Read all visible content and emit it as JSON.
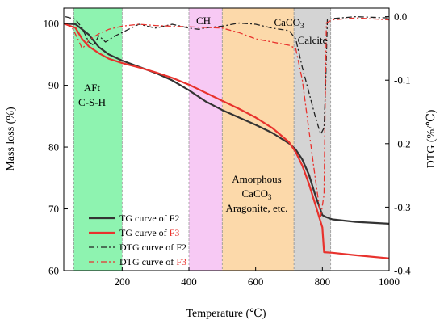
{
  "chart_data": {
    "type": "line",
    "xlabel": "Temperature (℃)",
    "ylabel_left": "Mass loss (%)",
    "ylabel_right": "DTG (%/℃)",
    "xlim": [
      25,
      1000
    ],
    "ylim_left": [
      60,
      102.5
    ],
    "ylim_right": [
      -0.4,
      0.0135
    ],
    "x_ticks": [
      200,
      400,
      600,
      800,
      1000
    ],
    "y_ticks_left": [
      60,
      70,
      80,
      90,
      100
    ],
    "y_ticks_right": [
      0.0,
      -0.1,
      -0.2,
      -0.3,
      -0.4
    ],
    "y_tick_labels_right": [
      "0.0",
      "-0.1",
      "-0.2",
      "-0.3",
      "-0.4"
    ],
    "grid": false,
    "legend_position": "bottom-left",
    "regions": [
      {
        "x0": 55,
        "x1": 200,
        "color": "#8ef3b0",
        "labels": [
          "AFt",
          "C-S-H"
        ]
      },
      {
        "x0": 400,
        "x1": 500,
        "color": "#f7c9f4",
        "labels": [
          "CH"
        ]
      },
      {
        "x0": 500,
        "x1": 715,
        "color": "#fcd9aa",
        "labels": [
          "Amorphous",
          "CaCO",
          "Aragonite, etc."
        ]
      },
      {
        "x0": 715,
        "x1": 825,
        "color": "#d4d4d4",
        "labels": [
          "CaCO",
          "Calcite"
        ]
      }
    ],
    "annotations": {
      "aft": "AFt",
      "csh": "C-S-H",
      "ch": "CH",
      "amorphous": "Amorphous",
      "caco3_mid_base": "CaCO",
      "caco3_mid_sub": "3",
      "aragonite": "Aragonite, etc.",
      "caco3_top_base": "CaCO",
      "caco3_top_sub": "3",
      "calcite": "Calcite"
    },
    "series": [
      {
        "name": "TG curve of F2",
        "legend_base": "TG curve of ",
        "legend_tag": "F2",
        "tag_color": "#000000",
        "axis": "left",
        "color": "#333333",
        "dash": "solid",
        "width": 2.2,
        "x": [
          25,
          60,
          100,
          130,
          160,
          200,
          250,
          300,
          350,
          400,
          450,
          500,
          550,
          600,
          650,
          700,
          720,
          740,
          760,
          780,
          800,
          810,
          830,
          900,
          1000
        ],
        "y": [
          100.0,
          99.9,
          98.2,
          96.2,
          95.0,
          94.0,
          93.0,
          92.0,
          90.8,
          89.2,
          87.4,
          86.0,
          84.8,
          83.6,
          82.3,
          80.6,
          79.6,
          78.0,
          75.5,
          72.0,
          69.0,
          68.7,
          68.3,
          67.9,
          67.6
        ]
      },
      {
        "name": "TG curve of F3",
        "legend_base": "TG curve of ",
        "legend_tag": "F3",
        "tag_color": "#e8322d",
        "axis": "left",
        "color": "#e8322d",
        "dash": "solid",
        "width": 2.2,
        "x": [
          25,
          60,
          80,
          100,
          130,
          160,
          200,
          250,
          300,
          350,
          400,
          450,
          500,
          550,
          600,
          650,
          700,
          720,
          740,
          760,
          780,
          800,
          805,
          830,
          900,
          1000
        ],
        "y": [
          100.0,
          99.3,
          97.5,
          96.3,
          95.2,
          94.3,
          93.6,
          92.9,
          92.1,
          91.2,
          90.1,
          88.8,
          87.5,
          86.2,
          84.8,
          83.1,
          80.8,
          79.2,
          77.0,
          74.0,
          70.5,
          67.0,
          63.0,
          62.9,
          62.5,
          62.0
        ]
      },
      {
        "name": "DTG curve of F2",
        "legend_base": "DTG curve of ",
        "legend_tag": "F2",
        "tag_color": "#000000",
        "axis": "right",
        "color": "#222222",
        "dash": "7,3,2,3",
        "width": 1.3,
        "x": [
          30,
          60,
          80,
          100,
          115,
          130,
          150,
          180,
          200,
          250,
          300,
          350,
          400,
          430,
          460,
          500,
          550,
          600,
          650,
          700,
          720,
          740,
          760,
          780,
          795,
          805,
          810,
          815,
          830,
          900,
          1000
        ],
        "y": [
          0.0,
          -0.004,
          -0.018,
          -0.04,
          -0.045,
          -0.03,
          -0.04,
          -0.03,
          -0.025,
          -0.012,
          -0.018,
          -0.012,
          -0.018,
          -0.02,
          -0.017,
          -0.015,
          -0.01,
          -0.012,
          -0.018,
          -0.022,
          -0.035,
          -0.08,
          -0.12,
          -0.16,
          -0.185,
          -0.175,
          -0.1,
          -0.005,
          -0.003,
          0.0,
          -0.002
        ]
      },
      {
        "name": "DTG curve of F3",
        "legend_base": "DTG curve of ",
        "legend_tag": "F3",
        "tag_color": "#e8322d",
        "axis": "right",
        "color": "#e8322d",
        "dash": "7,3,2,3",
        "width": 1.3,
        "x": [
          30,
          50,
          70,
          80,
          90,
          100,
          130,
          160,
          200,
          250,
          300,
          350,
          400,
          450,
          500,
          550,
          600,
          650,
          700,
          720,
          740,
          760,
          780,
          795,
          805,
          808,
          812,
          830,
          900,
          1000
        ],
        "y": [
          -0.012,
          -0.017,
          -0.038,
          -0.05,
          -0.045,
          -0.037,
          -0.027,
          -0.02,
          -0.015,
          -0.012,
          -0.014,
          -0.015,
          -0.016,
          -0.017,
          -0.018,
          -0.025,
          -0.035,
          -0.04,
          -0.045,
          -0.05,
          -0.1,
          -0.18,
          -0.26,
          -0.315,
          -0.28,
          -0.15,
          -0.01,
          -0.005,
          -0.002,
          -0.005
        ]
      }
    ]
  }
}
